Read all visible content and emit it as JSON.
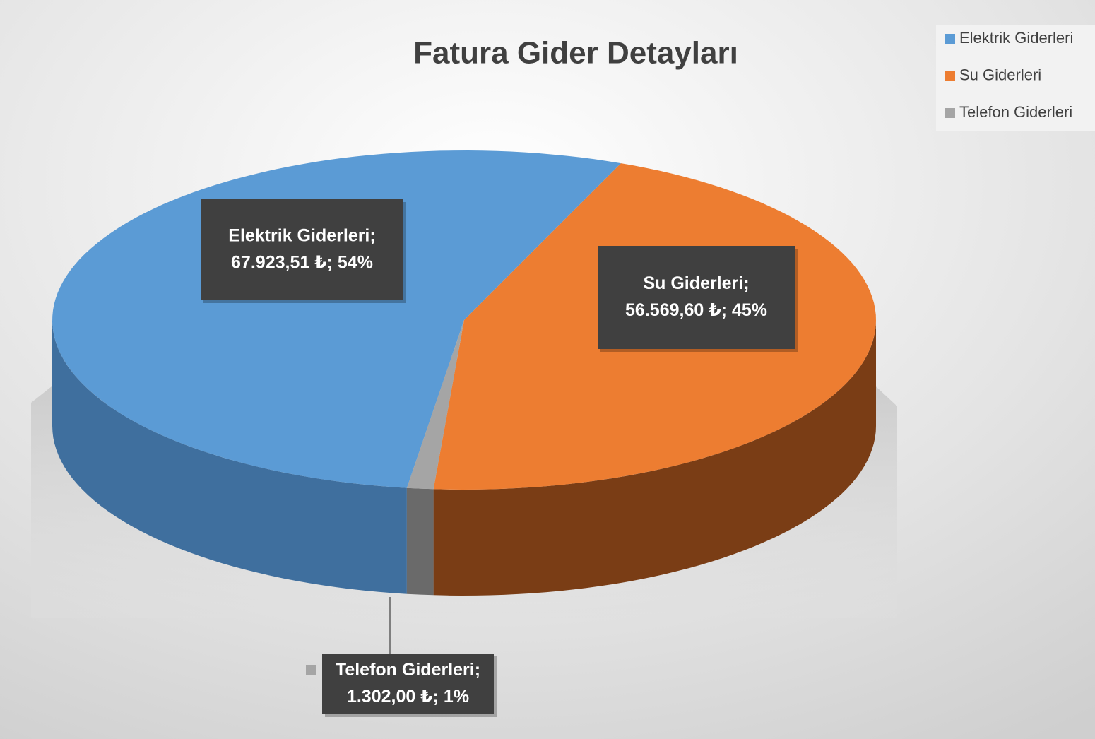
{
  "chart_data": {
    "type": "pie3d",
    "title": "Fatura Gider Detayları",
    "categories": [
      "Elektrik Giderleri",
      "Su Giderleri",
      "Telefon Giderleri"
    ],
    "values": [
      67923.51,
      56569.6,
      1302.0
    ],
    "value_labels": [
      "67.923,51 ₺",
      "56.569,60 ₺",
      "1.302,00 ₺"
    ],
    "percent_labels": [
      "54%",
      "45%",
      "1%"
    ],
    "label_separator": ";",
    "colors": [
      "#5b9bd5",
      "#ed7d31",
      "#a5a5a5"
    ],
    "side_colors": [
      "#3f6f9e",
      "#7a3d15",
      "#6a6a6a"
    ],
    "legend": "top-right"
  }
}
